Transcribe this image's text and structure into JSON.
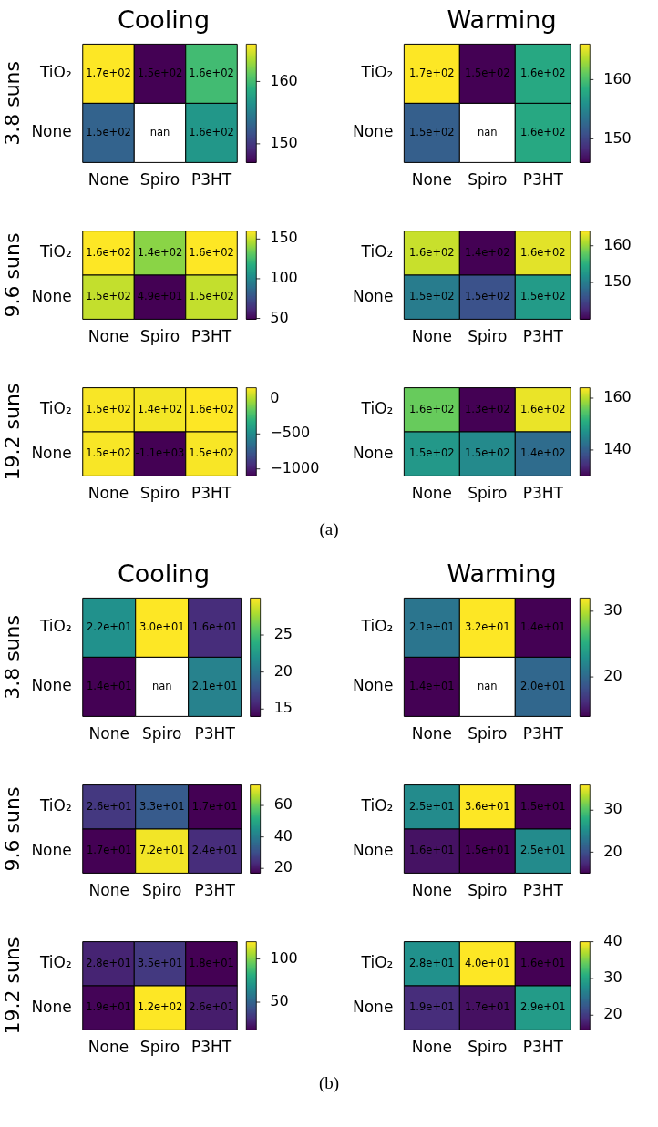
{
  "chart_data": [
    {
      "type": "heatmap",
      "title": "Cooling",
      "ylabel": "3.8 suns",
      "categories": [
        "None",
        "Spiro",
        "P3HT"
      ],
      "y_categories": [
        "TiO₂",
        "None"
      ],
      "cells": [
        [
          166,
          147,
          160
        ],
        [
          153,
          null,
          157
        ]
      ],
      "cell_labels": [
        [
          "1.7e+02",
          "1.5e+02",
          "1.6e+02"
        ],
        [
          "1.5e+02",
          "nan",
          "1.6e+02"
        ]
      ],
      "clim": [
        147,
        166
      ],
      "cticks": [
        150,
        160
      ]
    },
    {
      "type": "heatmap",
      "title": "Warming",
      "categories": [
        "None",
        "Spiro",
        "P3HT"
      ],
      "y_categories": [
        "TiO₂",
        "None"
      ],
      "cells": [
        [
          166,
          146,
          158
        ],
        [
          152,
          null,
          158
        ]
      ],
      "cell_labels": [
        [
          "1.7e+02",
          "1.5e+02",
          "1.6e+02"
        ],
        [
          "1.5e+02",
          "nan",
          "1.6e+02"
        ]
      ],
      "clim": [
        146,
        166
      ],
      "cticks": [
        150,
        160
      ]
    },
    {
      "type": "heatmap",
      "ylabel": "9.6 suns",
      "categories": [
        "None",
        "Spiro",
        "P3HT"
      ],
      "y_categories": [
        "TiO₂",
        "None"
      ],
      "cells": [
        [
          160,
          140,
          160
        ],
        [
          150,
          49,
          150
        ]
      ],
      "cell_labels": [
        [
          "1.6e+02",
          "1.4e+02",
          "1.6e+02"
        ],
        [
          "1.5e+02",
          "4.9e+01",
          "1.5e+02"
        ]
      ],
      "clim": [
        49,
        160
      ],
      "cticks": [
        50,
        100,
        150
      ]
    },
    {
      "type": "heatmap",
      "categories": [
        "None",
        "Spiro",
        "P3HT"
      ],
      "y_categories": [
        "TiO₂",
        "None"
      ],
      "cells": [
        [
          162,
          140,
          163
        ],
        [
          150,
          146,
          153
        ]
      ],
      "cell_labels": [
        [
          "1.6e+02",
          "1.4e+02",
          "1.6e+02"
        ],
        [
          "1.5e+02",
          "1.5e+02",
          "1.5e+02"
        ]
      ],
      "clim": [
        140,
        164
      ],
      "cticks": [
        150,
        160
      ]
    },
    {
      "type": "heatmap",
      "ylabel": "19.2 suns",
      "categories": [
        "None",
        "Spiro",
        "P3HT"
      ],
      "y_categories": [
        "TiO₂",
        "None"
      ],
      "cells": [
        [
          150,
          140,
          160
        ],
        [
          150,
          -1100,
          150
        ]
      ],
      "cell_labels": [
        [
          "1.5e+02",
          "1.4e+02",
          "1.6e+02"
        ],
        [
          "1.5e+02",
          "-1.1e+03",
          "1.5e+02"
        ]
      ],
      "clim": [
        -1100,
        160
      ],
      "cticks": [
        {
          "value": -1000,
          "label": "−1000"
        },
        {
          "value": -500,
          "label": "−500"
        },
        0
      ]
    },
    {
      "type": "heatmap",
      "categories": [
        "None",
        "Spiro",
        "P3HT"
      ],
      "y_categories": [
        "TiO₂",
        "None"
      ],
      "cells": [
        [
          156,
          130,
          163
        ],
        [
          148,
          146,
          142
        ]
      ],
      "cell_labels": [
        [
          "1.6e+02",
          "1.3e+02",
          "1.6e+02"
        ],
        [
          "1.5e+02",
          "1.5e+02",
          "1.4e+02"
        ]
      ],
      "clim": [
        130,
        164
      ],
      "cticks": [
        140,
        160
      ],
      "annotations": [
        "(a)"
      ]
    },
    {
      "type": "heatmap",
      "title": "Cooling",
      "ylabel": "3.8 suns",
      "categories": [
        "None",
        "Spiro",
        "P3HT"
      ],
      "y_categories": [
        "TiO₂",
        "None"
      ],
      "cells": [
        [
          22,
          30,
          16
        ],
        [
          14,
          null,
          21
        ]
      ],
      "cell_labels": [
        [
          "2.2e+01",
          "3.0e+01",
          "1.6e+01"
        ],
        [
          "1.4e+01",
          "nan",
          "2.1e+01"
        ]
      ],
      "clim": [
        14,
        30
      ],
      "cticks": [
        15,
        20,
        25
      ]
    },
    {
      "type": "heatmap",
      "title": "Warming",
      "categories": [
        "None",
        "Spiro",
        "P3HT"
      ],
      "y_categories": [
        "TiO₂",
        "None"
      ],
      "cells": [
        [
          21,
          32,
          14
        ],
        [
          14,
          null,
          20
        ]
      ],
      "cell_labels": [
        [
          "2.1e+01",
          "3.2e+01",
          "1.4e+01"
        ],
        [
          "1.4e+01",
          "nan",
          "2.0e+01"
        ]
      ],
      "clim": [
        14,
        32
      ],
      "cticks": [
        20,
        30
      ]
    },
    {
      "type": "heatmap",
      "ylabel": "9.6 suns",
      "categories": [
        "None",
        "Spiro",
        "P3HT"
      ],
      "y_categories": [
        "TiO₂",
        "None"
      ],
      "cells": [
        [
          26,
          33,
          17
        ],
        [
          17,
          72,
          24
        ]
      ],
      "cell_labels": [
        [
          "2.6e+01",
          "3.3e+01",
          "1.7e+01"
        ],
        [
          "1.7e+01",
          "7.2e+01",
          "2.4e+01"
        ]
      ],
      "clim": [
        17,
        73
      ],
      "cticks": [
        20,
        40,
        60
      ]
    },
    {
      "type": "heatmap",
      "categories": [
        "None",
        "Spiro",
        "P3HT"
      ],
      "y_categories": [
        "TiO₂",
        "None"
      ],
      "cells": [
        [
          25,
          36,
          15
        ],
        [
          16,
          15,
          25
        ]
      ],
      "cell_labels": [
        [
          "2.5e+01",
          "3.6e+01",
          "1.5e+01"
        ],
        [
          "1.6e+01",
          "1.5e+01",
          "2.5e+01"
        ]
      ],
      "clim": [
        15,
        36
      ],
      "cticks": [
        20,
        30
      ]
    },
    {
      "type": "heatmap",
      "ylabel": "19.2 suns",
      "categories": [
        "None",
        "Spiro",
        "P3HT"
      ],
      "y_categories": [
        "TiO₂",
        "None"
      ],
      "cells": [
        [
          28,
          35,
          18
        ],
        [
          19,
          120,
          26
        ]
      ],
      "cell_labels": [
        [
          "2.8e+01",
          "3.5e+01",
          "1.8e+01"
        ],
        [
          "1.9e+01",
          "1.2e+02",
          "2.6e+01"
        ]
      ],
      "clim": [
        18,
        120
      ],
      "cticks": [
        50,
        100
      ]
    },
    {
      "type": "heatmap",
      "categories": [
        "None",
        "Spiro",
        "P3HT"
      ],
      "y_categories": [
        "TiO₂",
        "None"
      ],
      "cells": [
        [
          28,
          40,
          16
        ],
        [
          19,
          17,
          29
        ]
      ],
      "cell_labels": [
        [
          "2.8e+01",
          "4.0e+01",
          "1.6e+01"
        ],
        [
          "1.9e+01",
          "1.7e+01",
          "2.9e+01"
        ]
      ],
      "clim": [
        16,
        40
      ],
      "cticks": [
        20,
        30,
        40
      ],
      "annotations": [
        "(b)"
      ]
    }
  ]
}
